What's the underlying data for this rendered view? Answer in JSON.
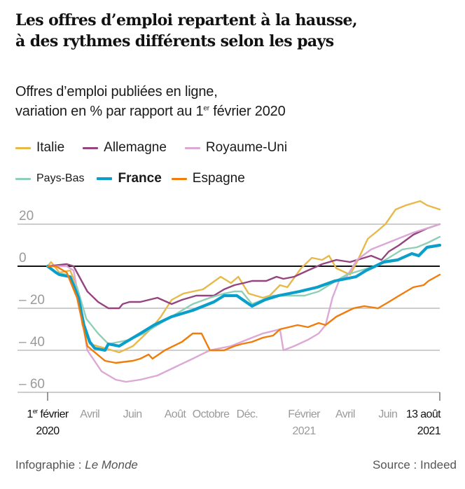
{
  "title_line1": "Les offres d’emploi repartent à la hausse,",
  "title_line2": "à des rythmes différents selon les pays",
  "subtitle_line1": "Offres d’emploi publiées en ligne,",
  "subtitle_line2_pre": "variation en % par rapport au 1",
  "subtitle_line2_sup": "er",
  "subtitle_line2_post": " février 2020",
  "footer": {
    "credit_prefix": "Infographie : ",
    "credit_name": "Le Monde",
    "source": "Source : Indeed"
  },
  "chart_data": {
    "type": "line",
    "title": "Les offres d’emploi repartent à la hausse, à des rythmes différents selon les pays",
    "subtitle": "Offres d’emploi publiées en ligne, variation en % par rapport au 1er février 2020",
    "xlabel": "",
    "ylabel": "",
    "x_unit": "weeks since 1 Feb 2020",
    "xlim": [
      0,
      80
    ],
    "ylim": [
      -60,
      30
    ],
    "grid": true,
    "legend_position": "top-left",
    "y_ticks": [
      {
        "value": 20,
        "label": "20"
      },
      {
        "value": 0,
        "label": "0"
      },
      {
        "value": -20,
        "label": "– 20"
      },
      {
        "value": -40,
        "label": "– 40"
      },
      {
        "value": -60,
        "label": "– 60"
      }
    ],
    "x_ticks": [
      {
        "x": 0,
        "label": "1er février",
        "label2": "2020",
        "emphasis": true,
        "tick": true
      },
      {
        "x": 8.6,
        "label": "Avril",
        "label2": "",
        "emphasis": false,
        "tick": false
      },
      {
        "x": 17.3,
        "label": "Juin",
        "label2": "",
        "emphasis": false,
        "tick": false
      },
      {
        "x": 26,
        "label": "Août",
        "label2": "",
        "emphasis": false,
        "tick": false
      },
      {
        "x": 33.3,
        "label": "Octobre",
        "label2": "",
        "emphasis": false,
        "tick": false
      },
      {
        "x": 40.7,
        "label": "Déc.",
        "label2": "",
        "emphasis": false,
        "tick": false
      },
      {
        "x": 52.3,
        "label": "Février",
        "label2": "2021",
        "emphasis": false,
        "tick": false
      },
      {
        "x": 60.7,
        "label": "Avril",
        "label2": "",
        "emphasis": false,
        "tick": false
      },
      {
        "x": 69.4,
        "label": "Juin",
        "label2": "",
        "emphasis": false,
        "tick": false
      },
      {
        "x": 80,
        "label": "13 août",
        "label2": "2021",
        "emphasis": true,
        "tick": true
      }
    ],
    "series": [
      {
        "name": "Italie",
        "color": "#e6b94a",
        "width": 2.4,
        "bold": false,
        "x": [
          0,
          0.7,
          2.4,
          4.6,
          6,
          7.1,
          8.6,
          11.7,
          14.6,
          17.4,
          21,
          23.1,
          25.3,
          27.7,
          31.7,
          35.3,
          37.4,
          38.9,
          41,
          43.9,
          45.3,
          47.4,
          48.9,
          51.7,
          53.9,
          56,
          57.4,
          58.9,
          61.7,
          63.1,
          65.3,
          67.4,
          68.9,
          71,
          73.1,
          76,
          77.4,
          80
        ],
        "values": [
          0,
          2,
          -3,
          -2,
          -10,
          -28,
          -37,
          -39,
          -41,
          -38,
          -30,
          -24,
          -16,
          -13,
          -11,
          -5,
          -8,
          -5,
          -13,
          -15,
          -14,
          -9,
          -10,
          -1,
          4,
          3,
          5,
          -1,
          -4,
          2,
          13,
          17,
          20,
          27,
          29,
          31,
          29,
          27
        ]
      },
      {
        "name": "Allemagne",
        "color": "#94457f",
        "width": 2.4,
        "bold": false,
        "x": [
          0,
          3.9,
          5.3,
          6.7,
          8.1,
          10.3,
          12.4,
          14.6,
          15.3,
          16.7,
          18.9,
          22.4,
          25.3,
          27.4,
          30.3,
          33.9,
          36,
          38.1,
          40,
          41.7,
          44.6,
          46.7,
          48.1,
          50.3,
          53.1,
          56,
          58.9,
          61.7,
          64.6,
          66,
          68.1,
          69.6,
          71.7,
          74.6,
          77.4,
          80
        ],
        "values": [
          0,
          1,
          0,
          -6,
          -12,
          -17,
          -20,
          -20,
          -18,
          -17,
          -17,
          -15,
          -18,
          -16,
          -14,
          -14,
          -11,
          -9,
          -8,
          -7,
          -7,
          -5,
          -6,
          -5,
          -2,
          1,
          3,
          2,
          4,
          5,
          3,
          7,
          10,
          15,
          18,
          20
        ]
      },
      {
        "name": "Royaume-Uni",
        "color": "#dca8d6",
        "width": 2.4,
        "bold": false,
        "x": [
          0,
          3.9,
          5.3,
          6.7,
          8.1,
          11,
          13.9,
          16,
          18.9,
          22.4,
          26,
          29.6,
          33.1,
          37.4,
          41.7,
          43.9,
          47.4,
          48.1,
          50.3,
          53.1,
          55.3,
          56.7,
          58.1,
          59.6,
          61,
          63.1,
          66,
          70.3,
          74.6,
          80
        ],
        "values": [
          0,
          0,
          -2,
          -20,
          -40,
          -50,
          -54,
          -55,
          -54,
          -52,
          -48,
          -44,
          -40,
          -38,
          -34,
          -32,
          -30,
          -40,
          -38,
          -35,
          -32,
          -28,
          -15,
          -6,
          -5,
          3,
          8,
          12,
          16,
          20
        ]
      },
      {
        "name": "Pays-Bas",
        "color": "#8ecfb5",
        "width": 2.4,
        "bold": false,
        "x": [
          0,
          1.7,
          3.9,
          6,
          7.9,
          10.3,
          12.4,
          14.6,
          16.7,
          19.6,
          23.1,
          26.7,
          29.6,
          33.1,
          36,
          38.1,
          39.6,
          41.7,
          43.9,
          46,
          48.1,
          52.4,
          55.3,
          58.1,
          61,
          63.9,
          66.7,
          69.6,
          72.4,
          75.3,
          77.4,
          80
        ],
        "values": [
          0,
          -3,
          -4,
          -10,
          -25,
          -32,
          -37,
          -36,
          -35,
          -32,
          -27,
          -22,
          -18,
          -15,
          -13,
          -12,
          -12,
          -18,
          -16,
          -14,
          -14,
          -14,
          -12,
          -8,
          -4,
          -2,
          0,
          4,
          8,
          9,
          11,
          14
        ]
      },
      {
        "name": "France",
        "color": "#0a9ecb",
        "width": 4.2,
        "bold": true,
        "x": [
          0,
          1.7,
          2.4,
          4.6,
          6.3,
          7.4,
          8.6,
          9.6,
          11.7,
          12.4,
          14.6,
          16,
          18.9,
          21.7,
          25.3,
          29.6,
          33.9,
          36,
          38.6,
          41.7,
          44.3,
          47.1,
          51.4,
          55,
          58.6,
          62.9,
          65,
          68.6,
          71.4,
          74.3,
          75.7,
          77.4,
          80
        ],
        "values": [
          0,
          -3,
          -4,
          -5,
          -15,
          -28,
          -36,
          -39,
          -40,
          -37,
          -38,
          -36,
          -32,
          -28,
          -24,
          -21,
          -17,
          -14,
          -14,
          -19,
          -16,
          -14,
          -12,
          -10,
          -7,
          -5,
          -2,
          2,
          3,
          6,
          5,
          9,
          10
        ]
      },
      {
        "name": "Espagne",
        "color": "#f07d0b",
        "width": 2.4,
        "bold": false,
        "x": [
          0,
          1.7,
          3.9,
          6,
          8.1,
          11.7,
          13.9,
          17.4,
          18.9,
          20.6,
          21.4,
          23.9,
          27.4,
          29.6,
          31.4,
          33.1,
          36,
          38.1,
          39.6,
          41.7,
          43.9,
          46,
          47.4,
          51,
          53.1,
          55.3,
          56.7,
          58.9,
          62.4,
          64.6,
          67.4,
          69.6,
          71.7,
          74.6,
          76.7,
          77.7,
          80
        ],
        "values": [
          0,
          0,
          -3,
          -15,
          -38,
          -45,
          -46,
          -45,
          -44,
          -42,
          -44,
          -40,
          -36,
          -32,
          -32,
          -40,
          -40,
          -38,
          -37,
          -36,
          -34,
          -33,
          -30,
          -28,
          -29,
          -27,
          -28,
          -24,
          -20,
          -19,
          -20,
          -17,
          -14,
          -10,
          -9,
          -7,
          -4
        ]
      }
    ]
  }
}
